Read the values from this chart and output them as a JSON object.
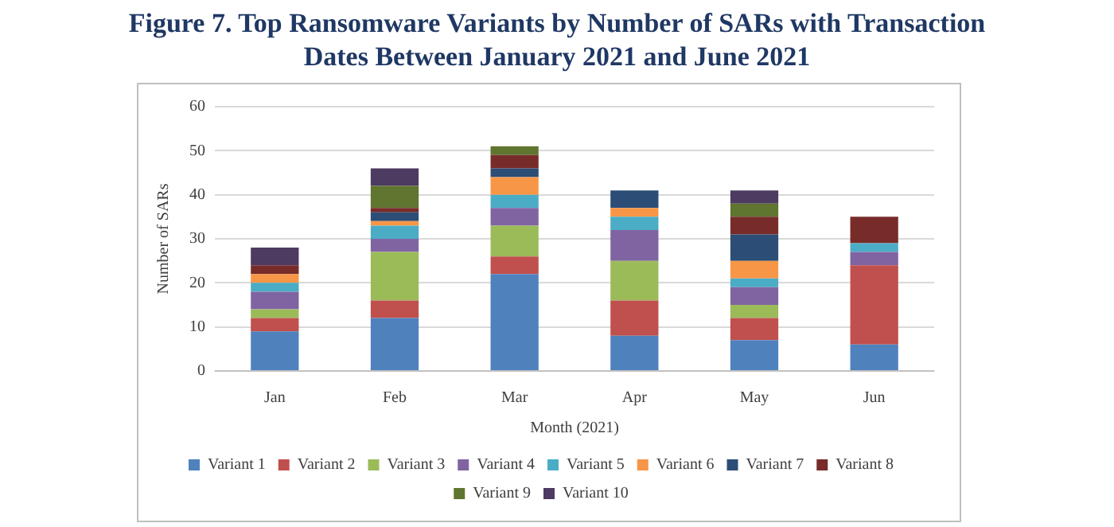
{
  "chart_data": {
    "type": "bar",
    "title": "Figure 7. Top Ransomware Variants by Number of SARs with Transaction Dates Between January 2021 and June 2021",
    "xlabel": "Month (2021)",
    "ylabel": "Number of SARs",
    "categories": [
      "Jan",
      "Feb",
      "Mar",
      "Apr",
      "May",
      "Jun"
    ],
    "stacked": true,
    "ylim": [
      0,
      60
    ],
    "yticks": [
      0,
      10,
      20,
      30,
      40,
      50,
      60
    ],
    "grid": "y",
    "legend": "bottom",
    "series": [
      {
        "name": "Variant 1",
        "color": "#4f81bd",
        "values": [
          9,
          12,
          22,
          8,
          7,
          6
        ]
      },
      {
        "name": "Variant 2",
        "color": "#c0504d",
        "values": [
          3,
          4,
          4,
          8,
          5,
          18
        ]
      },
      {
        "name": "Variant 3",
        "color": "#9bbb59",
        "values": [
          2,
          11,
          7,
          9,
          3,
          0
        ]
      },
      {
        "name": "Variant 4",
        "color": "#8064a2",
        "values": [
          4,
          3,
          4,
          7,
          4,
          3
        ]
      },
      {
        "name": "Variant 5",
        "color": "#4bacc6",
        "values": [
          2,
          3,
          3,
          3,
          2,
          2
        ]
      },
      {
        "name": "Variant 6",
        "color": "#f79646",
        "values": [
          2,
          1,
          4,
          2,
          4,
          0
        ]
      },
      {
        "name": "Variant 7",
        "color": "#2c4d75",
        "values": [
          0,
          2,
          2,
          4,
          6,
          0
        ]
      },
      {
        "name": "Variant 8",
        "color": "#772c2a",
        "values": [
          2,
          1,
          3,
          0,
          4,
          6
        ]
      },
      {
        "name": "Variant 9",
        "color": "#5f7530",
        "values": [
          0,
          5,
          2,
          0,
          3,
          0
        ]
      },
      {
        "name": "Variant 10",
        "color": "#4d3b62",
        "values": [
          4,
          4,
          0,
          0,
          3,
          0
        ]
      }
    ]
  }
}
